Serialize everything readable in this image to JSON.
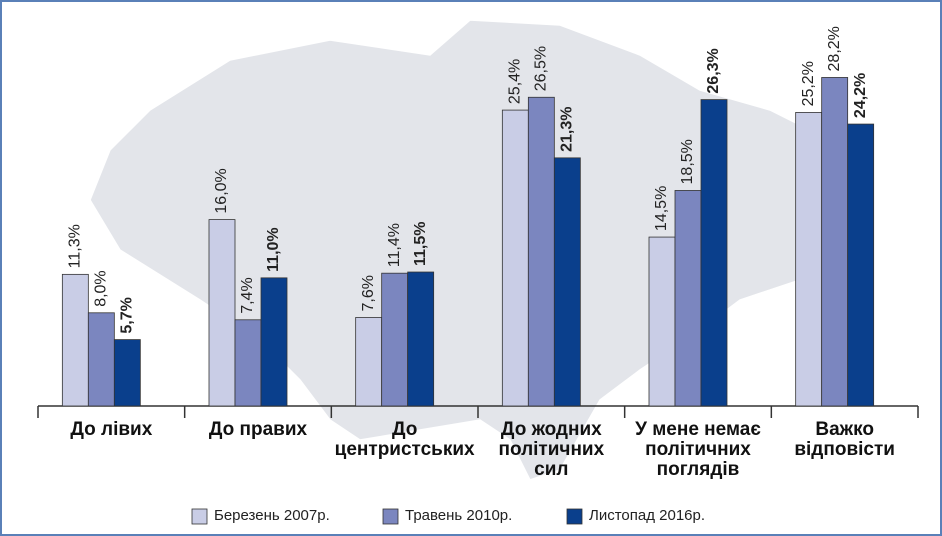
{
  "chart_data": {
    "type": "bar",
    "categories": [
      "До лівих",
      "До правих",
      "До центристських",
      "До жодних політичних сил",
      "У мене немає політичних поглядів",
      "Важко відповісти"
    ],
    "series": [
      {
        "name": "Березень 2007р.",
        "color": "#c9cde6",
        "values": [
          11.3,
          16.0,
          7.6,
          25.4,
          14.5,
          25.2
        ],
        "value_labels": [
          "11,3%",
          "16,0%",
          "7,6%",
          "25,4%",
          "14,5%",
          "25,2%"
        ]
      },
      {
        "name": "Травень 2010р.",
        "color": "#7b86bf",
        "values": [
          8.0,
          7.4,
          11.4,
          26.5,
          18.5,
          28.2
        ],
        "value_labels": [
          "8,0%",
          "7,4%",
          "11,4%",
          "26,5%",
          "18,5%",
          "28,2%"
        ]
      },
      {
        "name": "Листопад 2016р.",
        "color": "#0a3f8c",
        "values": [
          5.7,
          11.0,
          11.5,
          21.3,
          26.3,
          24.2
        ],
        "value_labels": [
          "5,7%",
          "11,0%",
          "11,5%",
          "21,3%",
          "26,3%",
          "24,2%"
        ]
      }
    ]
  }
}
